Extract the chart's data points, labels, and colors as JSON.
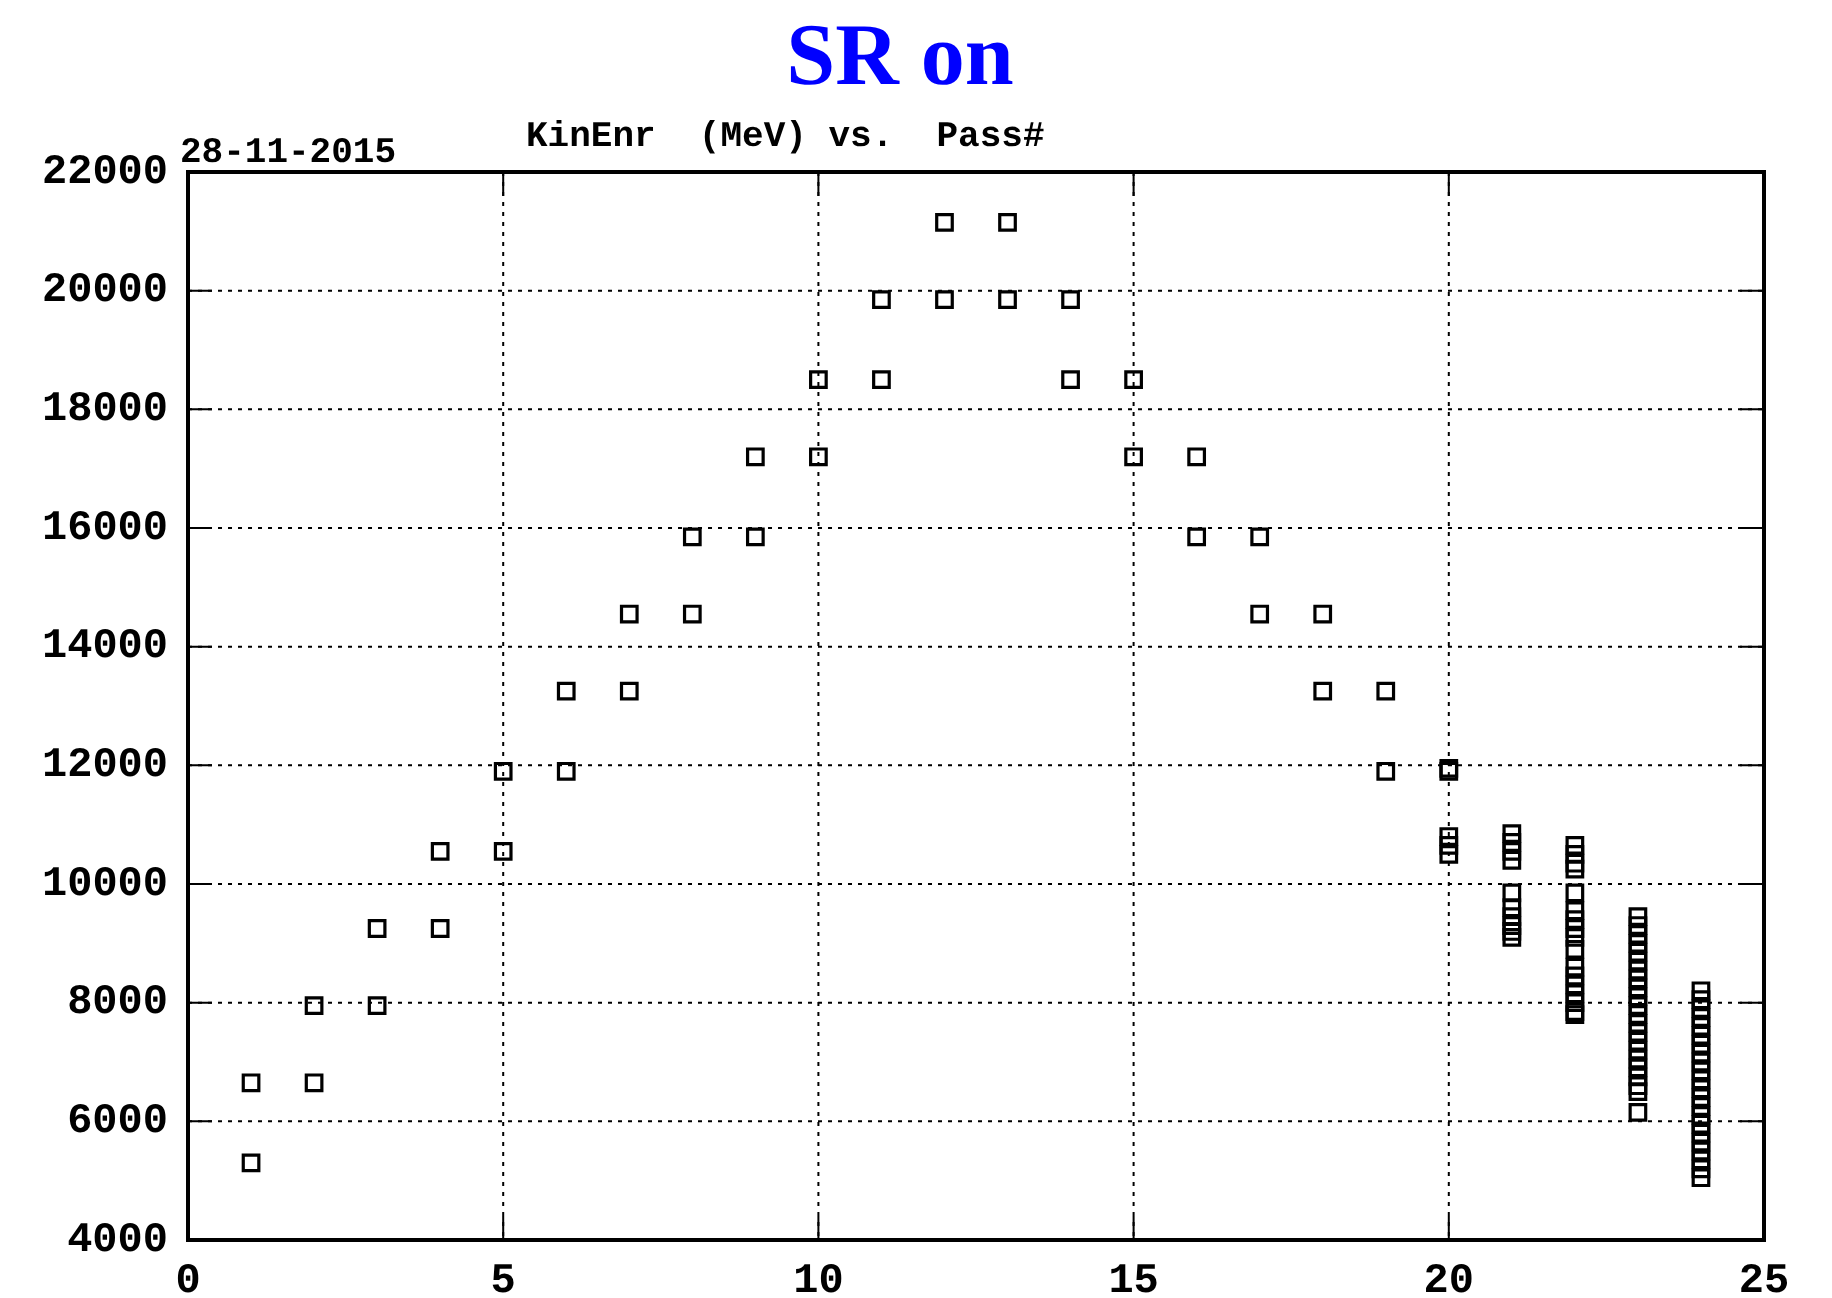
{
  "chart_data": {
    "type": "scatter",
    "title": "SR on",
    "subtitle": "KinEnr  (MeV) vs.  Pass#",
    "annotations": [
      "28-11-2015"
    ],
    "x": [
      1,
      1,
      2,
      2,
      3,
      3,
      4,
      4,
      5,
      5,
      6,
      6,
      7,
      7,
      8,
      8,
      9,
      9,
      10,
      10,
      11,
      11,
      12,
      12,
      13,
      13,
      14,
      14,
      15,
      15,
      16,
      16,
      17,
      17,
      18,
      18,
      19,
      19,
      20,
      20,
      20,
      20,
      20,
      21,
      21,
      21,
      21,
      21,
      21,
      21,
      21,
      21,
      21,
      22,
      22,
      22,
      22,
      22,
      22,
      22,
      22,
      22,
      22,
      22,
      22,
      22,
      22,
      22,
      22,
      22,
      23,
      23,
      23,
      23,
      23,
      23,
      23,
      23,
      23,
      23,
      23,
      23,
      23,
      23,
      23,
      23,
      23,
      23,
      23,
      23,
      23,
      23,
      24,
      24,
      24,
      24,
      24,
      24,
      24,
      24,
      24,
      24,
      24,
      24,
      24,
      24,
      24,
      24,
      24,
      24,
      24,
      24,
      24,
      24
    ],
    "series": [
      {
        "color": "#000000",
        "values": [
          5300,
          6650,
          6650,
          7950,
          7950,
          9250,
          9250,
          10550,
          10550,
          11900,
          11900,
          13250,
          13250,
          14550,
          14550,
          15850,
          15850,
          17200,
          17200,
          18500,
          18500,
          19850,
          19850,
          21150,
          19850,
          21150,
          18500,
          19850,
          17200,
          18500,
          15850,
          17200,
          14550,
          15850,
          13250,
          14550,
          11900,
          13250,
          11950,
          11900,
          10800,
          10650,
          10500,
          10850,
          10700,
          10550,
          10400,
          9850,
          9600,
          9450,
          9300,
          9200,
          9100,
          10650,
          10500,
          10350,
          10250,
          9850,
          9550,
          9400,
          9250,
          9100,
          8900,
          8600,
          8450,
          8300,
          8150,
          8000,
          7850,
          7800,
          9450,
          9300,
          9150,
          9000,
          8850,
          8700,
          8550,
          8400,
          8250,
          8100,
          7950,
          7800,
          7650,
          7500,
          7350,
          7200,
          7050,
          6900,
          6750,
          6600,
          6500,
          6150,
          8200,
          8050,
          7900,
          7750,
          7600,
          7450,
          7300,
          7150,
          7000,
          6850,
          6700,
          6550,
          6400,
          6250,
          6100,
          5950,
          5800,
          5650,
          5500,
          5350,
          5200,
          5050
        ]
      }
    ],
    "xlim": [
      0,
      25
    ],
    "xticks": [
      0,
      5,
      10,
      15,
      20,
      25
    ],
    "ylim": [
      4000,
      22000
    ],
    "yticks": [
      4000,
      6000,
      8000,
      10000,
      12000,
      14000,
      16000,
      18000,
      20000,
      22000
    ],
    "grid": true,
    "marker": "square",
    "legend": false
  }
}
